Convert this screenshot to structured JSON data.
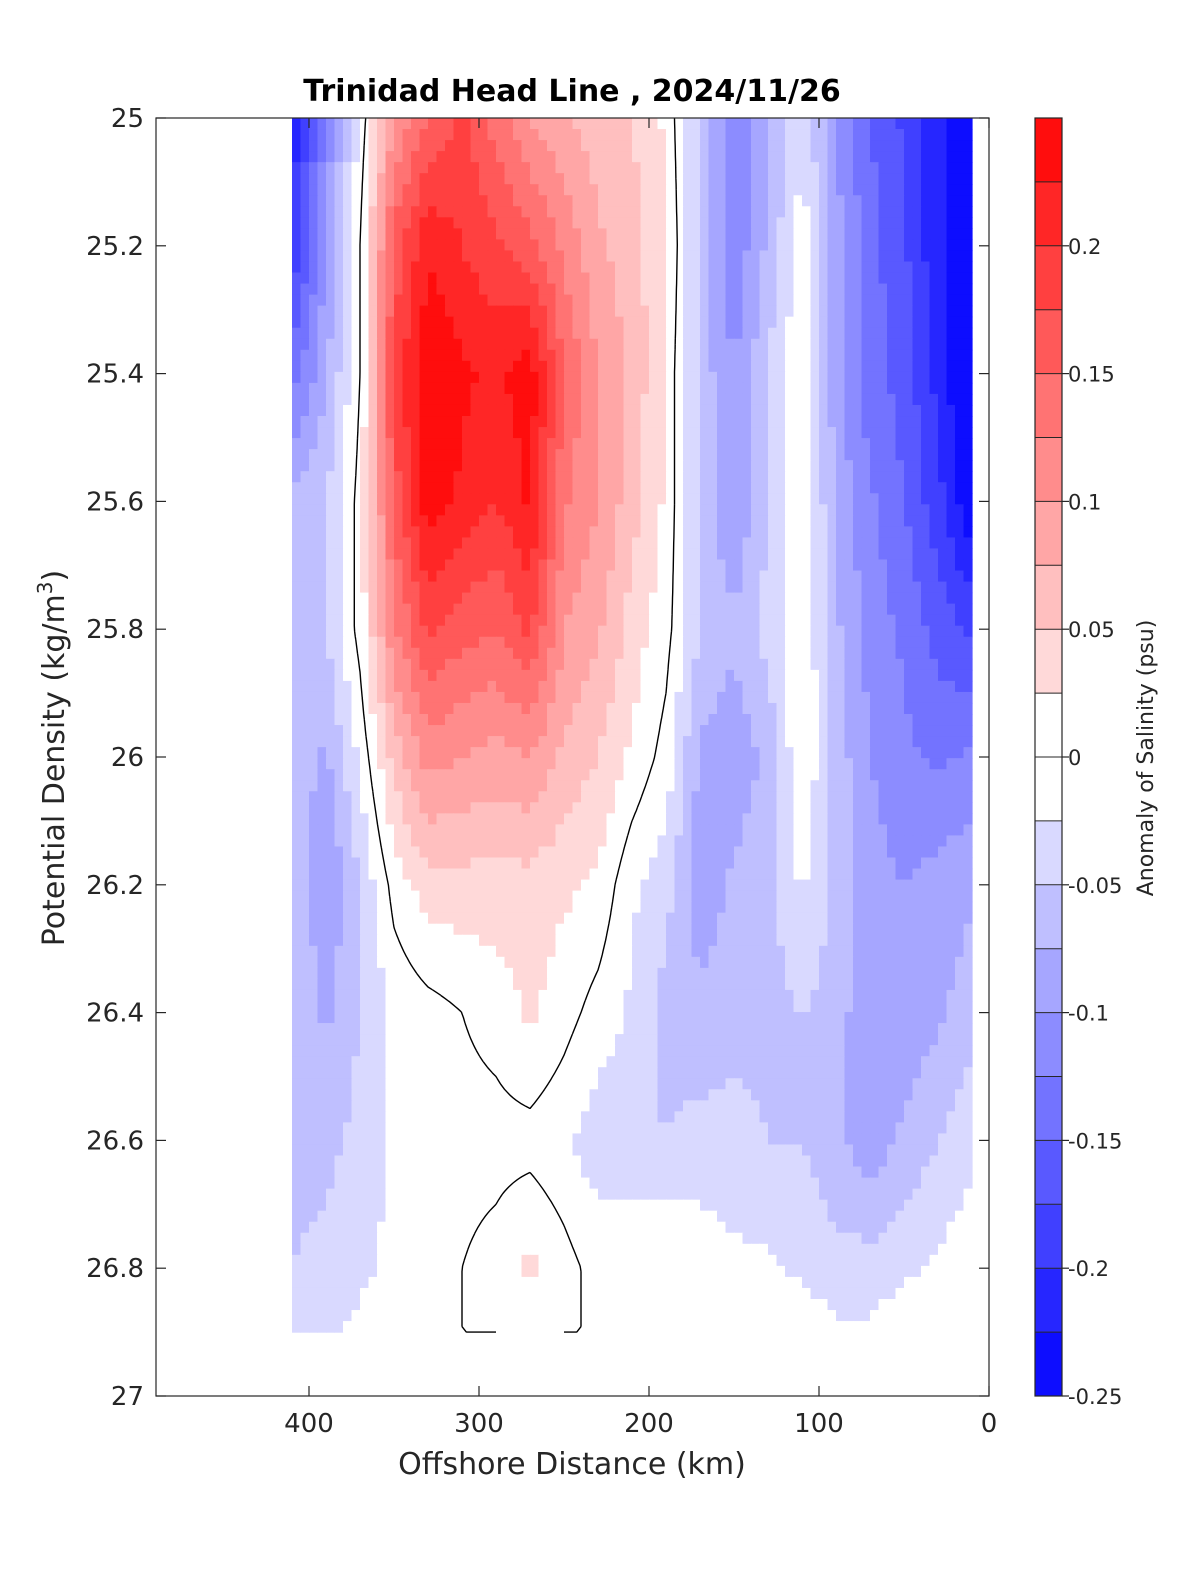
{
  "chart_data": {
    "type": "heatmap",
    "title": "Trinidad Head Line , 2024/11/26",
    "xlabel": "Offshore Distance (km)",
    "ylabel": "Potential Density (kg/m",
    "ylabel_sup": "3",
    "ylabel_end": ")",
    "x_reversed": true,
    "xlim": [
      490,
      0
    ],
    "ylim": [
      25,
      27
    ],
    "y_reversed": true,
    "x_ticks": [
      400,
      300,
      200,
      100,
      0
    ],
    "y_ticks": [
      25,
      25.2,
      25.4,
      25.6,
      25.8,
      26,
      26.2,
      26.4,
      26.6,
      26.8,
      27
    ],
    "colorbar": {
      "label": "Anomaly of Salinity (psu)",
      "range": [
        -0.25,
        0.25
      ],
      "tick_values": [
        -0.25,
        -0.2,
        -0.15,
        -0.1,
        -0.05,
        0,
        0.05,
        0.1,
        0.15,
        0.2
      ],
      "tick_labels": [
        "-0.25",
        "-0.2",
        "-0.15",
        "-0.1",
        "-0.05",
        "0",
        "0.05",
        "0.1",
        "0.15",
        "0.2"
      ],
      "levels": 20,
      "low_color": "#0000ff",
      "mid_color": "#ffffff",
      "high_color": "#ff0000"
    },
    "contour_level": 0,
    "x_stations": [
      410,
      390,
      370,
      350,
      330,
      310,
      290,
      270,
      250,
      230,
      210,
      190,
      170,
      150,
      130,
      110,
      90,
      70,
      50,
      30,
      10
    ],
    "y_levels": [
      25.0,
      25.2,
      25.4,
      25.6,
      25.8,
      26.0,
      26.2,
      26.4,
      26.6,
      26.8,
      26.9
    ],
    "field": [
      [
        -0.22,
        -0.12,
        -0.02,
        0.1,
        0.15,
        0.18,
        0.14,
        0.1,
        0.08,
        0.06,
        0.05,
        0.02,
        -0.06,
        -0.12,
        -0.08,
        -0.03,
        -0.1,
        -0.15,
        -0.18,
        -0.22,
        -0.25
      ],
      [
        -0.2,
        -0.1,
        0.0,
        0.16,
        0.22,
        0.2,
        0.18,
        0.16,
        0.12,
        0.08,
        0.06,
        0.03,
        -0.06,
        -0.12,
        -0.07,
        -0.01,
        -0.09,
        -0.14,
        -0.17,
        -0.22,
        -0.26
      ],
      [
        -0.14,
        -0.08,
        0.0,
        0.18,
        0.25,
        0.23,
        0.22,
        0.24,
        0.15,
        0.1,
        0.07,
        0.02,
        -0.06,
        -0.1,
        -0.05,
        0.0,
        -0.09,
        -0.14,
        -0.16,
        -0.21,
        -0.26
      ],
      [
        -0.07,
        -0.05,
        0.01,
        0.16,
        0.24,
        0.22,
        0.2,
        0.23,
        0.13,
        0.1,
        0.06,
        0.02,
        -0.06,
        -0.1,
        -0.05,
        0.0,
        -0.08,
        -0.12,
        -0.15,
        -0.19,
        -0.25
      ],
      [
        -0.06,
        -0.05,
        0.01,
        0.12,
        0.18,
        0.16,
        0.15,
        0.18,
        0.1,
        0.08,
        0.04,
        0.01,
        -0.05,
        -0.07,
        -0.04,
        0.0,
        -0.07,
        -0.11,
        -0.13,
        -0.16,
        -0.18
      ],
      [
        -0.06,
        -0.08,
        -0.02,
        0.06,
        0.11,
        0.1,
        0.09,
        0.1,
        0.07,
        0.05,
        0.02,
        -0.01,
        -0.08,
        -0.09,
        -0.07,
        0.0,
        -0.06,
        -0.1,
        -0.12,
        -0.13,
        -0.12
      ],
      [
        -0.05,
        -0.1,
        -0.05,
        0.01,
        0.04,
        0.04,
        0.04,
        0.04,
        0.03,
        0.02,
        -0.02,
        -0.04,
        -0.09,
        -0.07,
        -0.06,
        -0.02,
        -0.06,
        -0.09,
        -0.1,
        -0.09,
        -0.08
      ],
      [
        -0.05,
        -0.08,
        -0.05,
        -0.02,
        -0.01,
        0.0,
        0.01,
        0.03,
        0.01,
        -0.01,
        -0.03,
        -0.06,
        -0.07,
        -0.06,
        -0.06,
        -0.05,
        -0.06,
        -0.1,
        -0.09,
        -0.08,
        -0.06
      ],
      [
        -0.06,
        -0.06,
        -0.04,
        -0.02,
        -0.02,
        -0.01,
        -0.01,
        -0.01,
        -0.02,
        -0.04,
        -0.04,
        -0.05,
        -0.04,
        -0.04,
        -0.05,
        -0.05,
        -0.07,
        -0.09,
        -0.07,
        -0.05,
        -0.03
      ],
      [
        -0.05,
        -0.04,
        -0.03,
        -0.02,
        -0.01,
        0.0,
        0.01,
        0.03,
        0.01,
        -0.01,
        -0.01,
        0.0,
        -0.01,
        -0.02,
        -0.02,
        -0.03,
        -0.04,
        -0.04,
        -0.03,
        -0.02,
        -0.01
      ],
      [
        -0.04,
        -0.03,
        -0.02,
        -0.01,
        0.0,
        0.0,
        0.0,
        0.01,
        0.0,
        0.0,
        0.0,
        0.0,
        0.0,
        -0.01,
        -0.01,
        -0.01,
        -0.02,
        -0.02,
        -0.01,
        -0.01,
        0.0
      ]
    ]
  }
}
